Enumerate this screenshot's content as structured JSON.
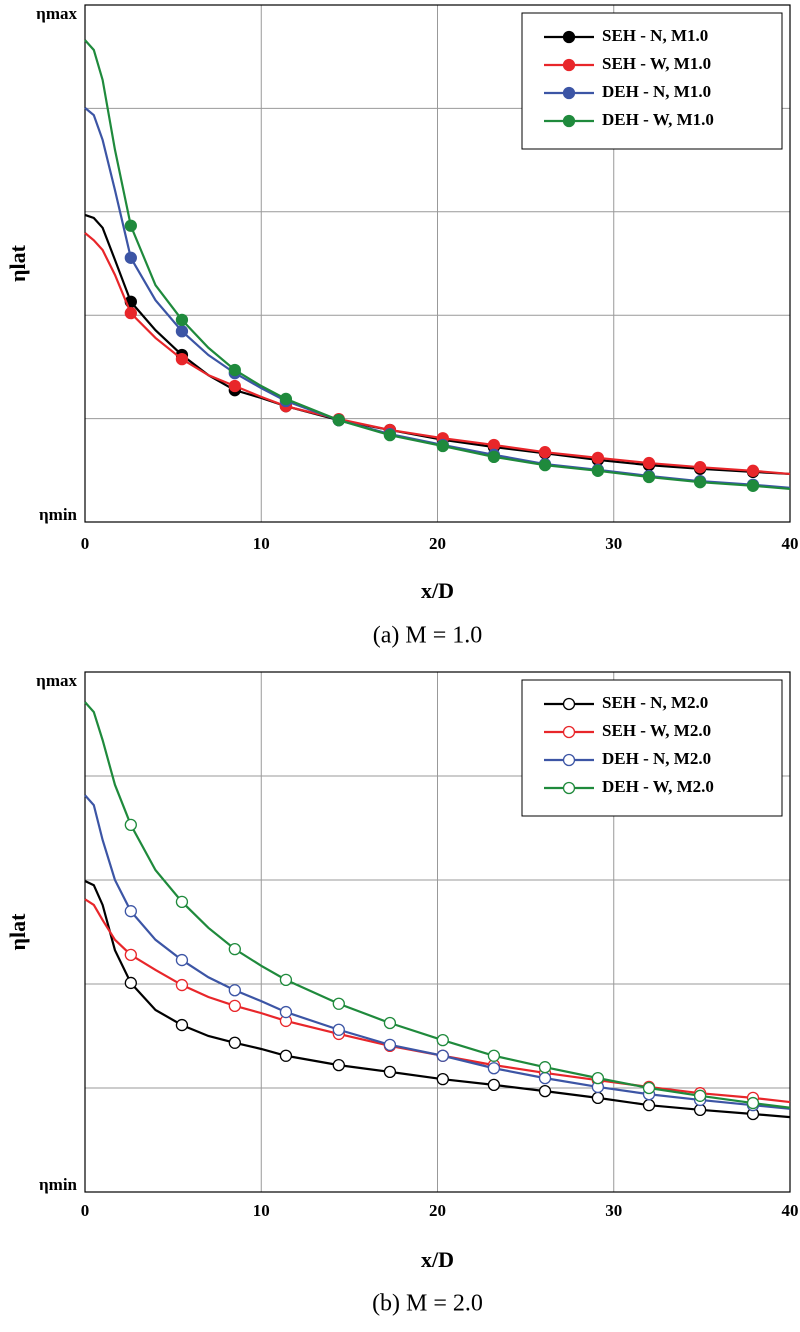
{
  "chart_data": [
    {
      "type": "line",
      "title": "(a)  M = 1.0",
      "xlabel": "x/D",
      "ylabel": "ηlat",
      "x": [
        0,
        0.5,
        1,
        1.7,
        2.6,
        4,
        5.5,
        7,
        8.5,
        10,
        11.4,
        14.4,
        17.3,
        20.3,
        23.2,
        26.1,
        29.1,
        32.0,
        34.9,
        37.9,
        40
      ],
      "marker_x": [
        2.6,
        5.5,
        8.5,
        11.4,
        14.4,
        17.3,
        20.3,
        23.2,
        26.1,
        29.1,
        32.0,
        34.9,
        37.9
      ],
      "marker": "filled",
      "xlim": [
        0,
        40
      ],
      "xticks": [
        0,
        10,
        20,
        30,
        40
      ],
      "ylim": [
        0,
        1
      ],
      "yticks": [
        {
          "value": 0,
          "label": "ηmin"
        },
        {
          "value": 0.2,
          "label": null
        },
        {
          "value": 0.4,
          "label": null
        },
        {
          "value": 0.6,
          "label": null
        },
        {
          "value": 0.8,
          "label": null
        },
        {
          "value": 1,
          "label": "ηmax"
        }
      ],
      "grid": true,
      "legend": "upper right",
      "series": [
        {
          "name": "SEH - N, M1.0",
          "color": "#000000",
          "values": [
            0.594,
            0.588,
            0.569,
            0.507,
            0.426,
            0.371,
            0.323,
            0.284,
            0.255,
            0.24,
            0.224,
            0.197,
            0.178,
            0.159,
            0.145,
            0.133,
            0.12,
            0.11,
            0.103,
            0.097,
            0.093
          ]
        },
        {
          "name": "SEH - W, M1.0",
          "color": "#e8262a",
          "values": [
            0.559,
            0.545,
            0.526,
            0.478,
            0.404,
            0.356,
            0.315,
            0.284,
            0.263,
            0.242,
            0.224,
            0.199,
            0.178,
            0.162,
            0.149,
            0.135,
            0.124,
            0.114,
            0.106,
            0.099,
            0.093
          ]
        },
        {
          "name": "DEH - N, M1.0",
          "color": "#3c55a5",
          "values": [
            0.801,
            0.787,
            0.739,
            0.642,
            0.511,
            0.429,
            0.369,
            0.323,
            0.288,
            0.259,
            0.234,
            0.197,
            0.17,
            0.149,
            0.13,
            0.112,
            0.101,
            0.089,
            0.079,
            0.072,
            0.066
          ]
        },
        {
          "name": "DEH - W, M1.0",
          "color": "#1f8a3c",
          "values": [
            0.932,
            0.913,
            0.855,
            0.72,
            0.573,
            0.458,
            0.391,
            0.337,
            0.294,
            0.263,
            0.238,
            0.197,
            0.168,
            0.147,
            0.126,
            0.11,
            0.099,
            0.087,
            0.077,
            0.07,
            0.064
          ]
        }
      ]
    },
    {
      "type": "line",
      "title": "(b)  M = 2.0",
      "xlabel": "x/D",
      "ylabel": "ηlat",
      "x": [
        0,
        0.5,
        1,
        1.7,
        2.6,
        4,
        5.5,
        7,
        8.5,
        10,
        11.4,
        14.4,
        17.3,
        20.3,
        23.2,
        26.1,
        29.1,
        32.0,
        34.9,
        37.9,
        40
      ],
      "marker_x": [
        2.6,
        5.5,
        8.5,
        11.4,
        14.4,
        17.3,
        20.3,
        23.2,
        26.1,
        29.1,
        32.0,
        34.9,
        37.9
      ],
      "marker": "open",
      "xlim": [
        0,
        40
      ],
      "xticks": [
        0,
        10,
        20,
        30,
        40
      ],
      "ylim": [
        0,
        1
      ],
      "yticks": [
        {
          "value": 0,
          "label": "ηmin"
        },
        {
          "value": 0.2,
          "label": null
        },
        {
          "value": 0.4,
          "label": null
        },
        {
          "value": 0.6,
          "label": null
        },
        {
          "value": 0.8,
          "label": null
        },
        {
          "value": 1,
          "label": "ηmax"
        }
      ],
      "grid": true,
      "legend": "upper right",
      "series": [
        {
          "name": "SEH - N, M2.0",
          "color": "#000000",
          "values": [
            0.598,
            0.59,
            0.552,
            0.465,
            0.402,
            0.35,
            0.321,
            0.3,
            0.287,
            0.275,
            0.262,
            0.244,
            0.231,
            0.217,
            0.206,
            0.194,
            0.181,
            0.167,
            0.158,
            0.15,
            0.144
          ]
        },
        {
          "name": "SEH - W, M2.0",
          "color": "#e8262a",
          "values": [
            0.563,
            0.552,
            0.523,
            0.485,
            0.456,
            0.427,
            0.398,
            0.375,
            0.358,
            0.344,
            0.329,
            0.304,
            0.281,
            0.262,
            0.244,
            0.229,
            0.215,
            0.202,
            0.19,
            0.181,
            0.173
          ]
        },
        {
          "name": "DEH - N, M2.0",
          "color": "#3c55a5",
          "values": [
            0.763,
            0.744,
            0.677,
            0.6,
            0.54,
            0.485,
            0.446,
            0.413,
            0.388,
            0.367,
            0.346,
            0.312,
            0.283,
            0.262,
            0.238,
            0.219,
            0.202,
            0.188,
            0.177,
            0.167,
            0.16
          ]
        },
        {
          "name": "DEH - W, M2.0",
          "color": "#1f8a3c",
          "values": [
            0.942,
            0.923,
            0.869,
            0.783,
            0.706,
            0.619,
            0.558,
            0.508,
            0.467,
            0.435,
            0.408,
            0.362,
            0.325,
            0.292,
            0.262,
            0.24,
            0.219,
            0.2,
            0.185,
            0.171,
            0.162
          ]
        }
      ]
    }
  ]
}
